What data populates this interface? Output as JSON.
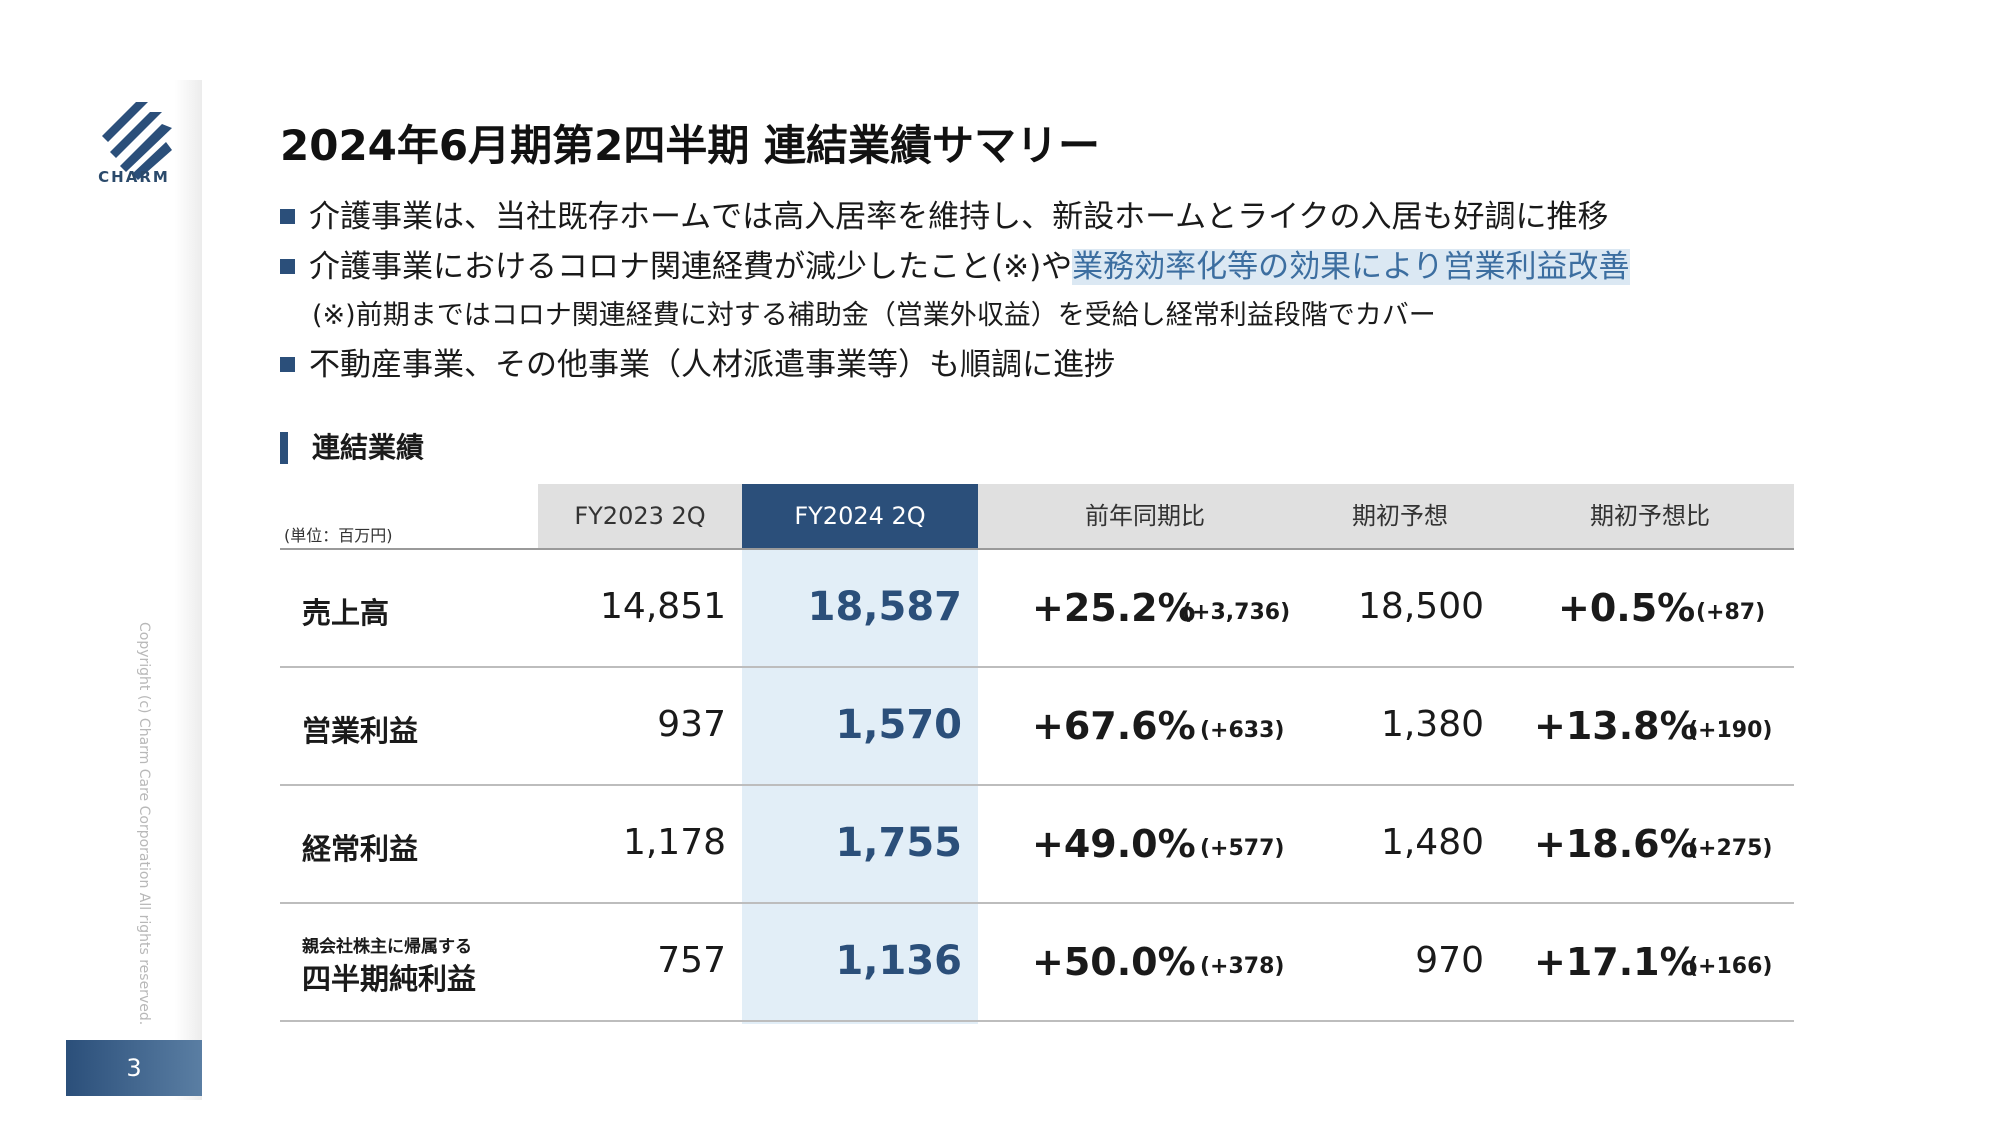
{
  "brand": {
    "logo_text": "CHARM",
    "logo_color": "#2b4f7a"
  },
  "copyright": "Copyright (c) Charm Care Corporation All rights reserved.",
  "page_number": "3",
  "title": "2024年6月期第2四半期 連結業績サマリー",
  "bullets": {
    "b1": "介護事業は、当社既存ホームでは高入居率を維持し、新設ホームとライクの入居も好調に推移",
    "b2_plain": "介護事業におけるコロナ関連経費が減少したこと(※)や",
    "b2_highlight": "業務効率化等の効果により営業利益改善",
    "note": "(※)前期まではコロナ関連経費に対する補助金（営業外収益）を受給し経常利益段階でカバー",
    "b3": "不動産事業、その他事業（人材派遣事業等）も順調に進捗"
  },
  "section_title": "連結業績",
  "table": {
    "unit": "(単位：百万円)",
    "headers": [
      "FY2023 2Q",
      "FY2024 2Q",
      "前年同期比",
      "期初予想",
      "期初予想比"
    ],
    "rows": [
      {
        "pre": "",
        "label": "売上高",
        "prev": "14,851",
        "curr": "18,587",
        "yoy_pct": "+25.2%",
        "yoy_diff": "(+3,736)",
        "forecast": "18,500",
        "vs_pct": "+0.5%",
        "vs_diff": "(+87)"
      },
      {
        "pre": "",
        "label": "営業利益",
        "prev": "937",
        "curr": "1,570",
        "yoy_pct": "+67.6%",
        "yoy_diff": "(+633)",
        "forecast": "1,380",
        "vs_pct": "+13.8%",
        "vs_diff": "(+190)"
      },
      {
        "pre": "",
        "label": "経常利益",
        "prev": "1,178",
        "curr": "1,755",
        "yoy_pct": "+49.0%",
        "yoy_diff": "(+577)",
        "forecast": "1,480",
        "vs_pct": "+18.6%",
        "vs_diff": "(+275)"
      },
      {
        "pre": "親会社株主に帰属する",
        "label": "四半期純利益",
        "prev": "757",
        "curr": "1,136",
        "yoy_pct": "+50.0%",
        "yoy_diff": "(+378)",
        "forecast": "970",
        "vs_pct": "+17.1%",
        "vs_diff": "(+166)"
      }
    ]
  }
}
